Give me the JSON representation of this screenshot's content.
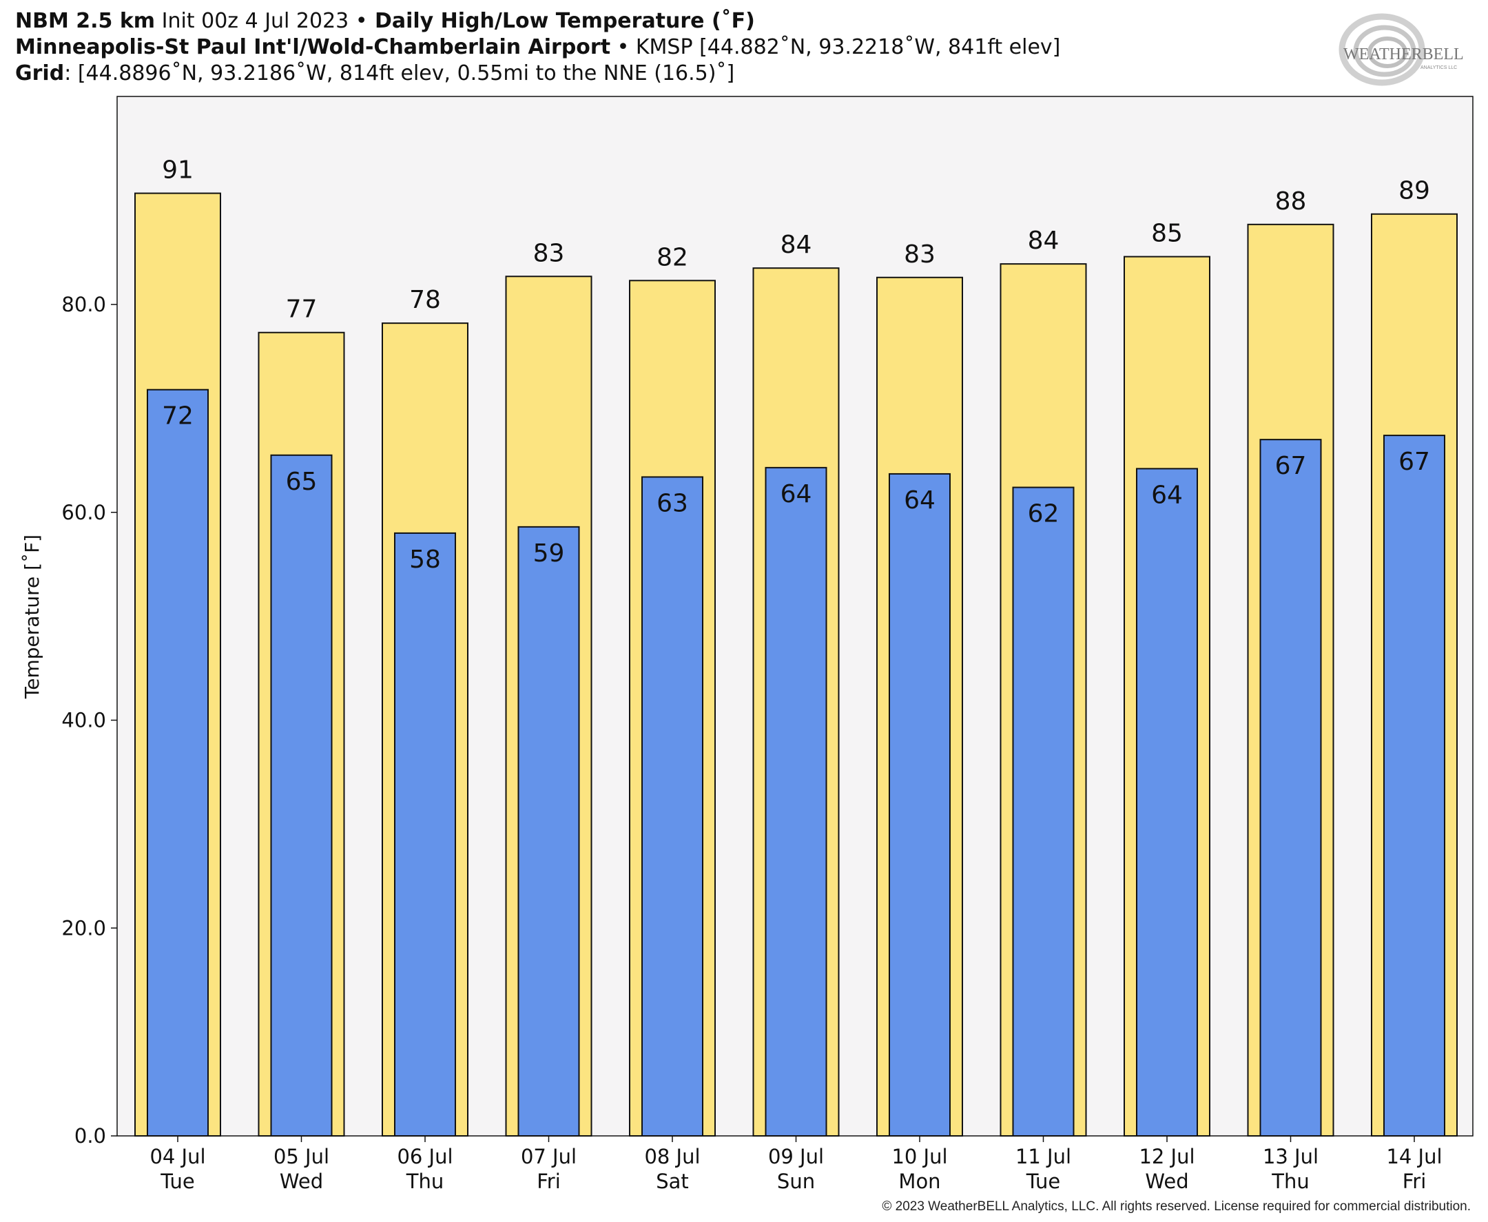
{
  "header": {
    "line1_bold1": "NBM 2.5 km",
    "line1_text1": " Init 00z 4 Jul 2023 ",
    "line1_sep": "•",
    "line1_bold2": " Daily High/Low Temperature (˚F)",
    "line2_bold": "Minneapolis-St Paul Int'l/Wold-Chamberlain Airport",
    "line2_sep": " • ",
    "line2_text": "KMSP [44.882˚N, 93.2218˚W, 841ft elev]",
    "line3_bold": "Grid",
    "line3_text": ": [44.8896˚N, 93.2186˚W, 814ft elev, 0.55mi to the NNE (16.5)˚]"
  },
  "logo": {
    "text": "WEATHERBELL",
    "subtext": "ANALYTICS LLC"
  },
  "footer": "© 2023 WeatherBELL Analytics, LLC. All rights reserved. License required for commercial distribution.",
  "colors": {
    "high_bar": "#fce481",
    "low_bar": "#6493ea",
    "plot_background": "#f5f4f5",
    "outline": "#111111"
  },
  "chart_data": {
    "type": "bar",
    "ylabel": "Temperature [˚F]",
    "xlabel": "",
    "ylim": [
      0,
      100
    ],
    "yticks": [
      0,
      20,
      40,
      60,
      80
    ],
    "ytick_labels": [
      "0.0",
      "20.0",
      "40.0",
      "60.0",
      "80.0"
    ],
    "grid": false,
    "categories": [
      [
        "04 Jul",
        "Tue"
      ],
      [
        "05 Jul",
        "Wed"
      ],
      [
        "06 Jul",
        "Thu"
      ],
      [
        "07 Jul",
        "Fri"
      ],
      [
        "08 Jul",
        "Sat"
      ],
      [
        "09 Jul",
        "Sun"
      ],
      [
        "10 Jul",
        "Mon"
      ],
      [
        "11 Jul",
        "Tue"
      ],
      [
        "12 Jul",
        "Wed"
      ],
      [
        "13 Jul",
        "Thu"
      ],
      [
        "14 Jul",
        "Fri"
      ]
    ],
    "series": [
      {
        "key": "high",
        "values": [
          90.7,
          77.3,
          78.2,
          82.7,
          82.3,
          83.5,
          82.6,
          83.9,
          84.6,
          87.7,
          88.7
        ],
        "labels": [
          "91",
          "77",
          "78",
          "83",
          "82",
          "84",
          "83",
          "84",
          "85",
          "88",
          "89"
        ]
      },
      {
        "key": "low",
        "values": [
          71.8,
          65.5,
          58.0,
          58.6,
          63.4,
          64.3,
          63.7,
          62.4,
          64.2,
          67.0,
          67.4
        ],
        "labels": [
          "72",
          "65",
          "58",
          "59",
          "63",
          "64",
          "64",
          "62",
          "64",
          "67",
          "67"
        ]
      }
    ]
  }
}
